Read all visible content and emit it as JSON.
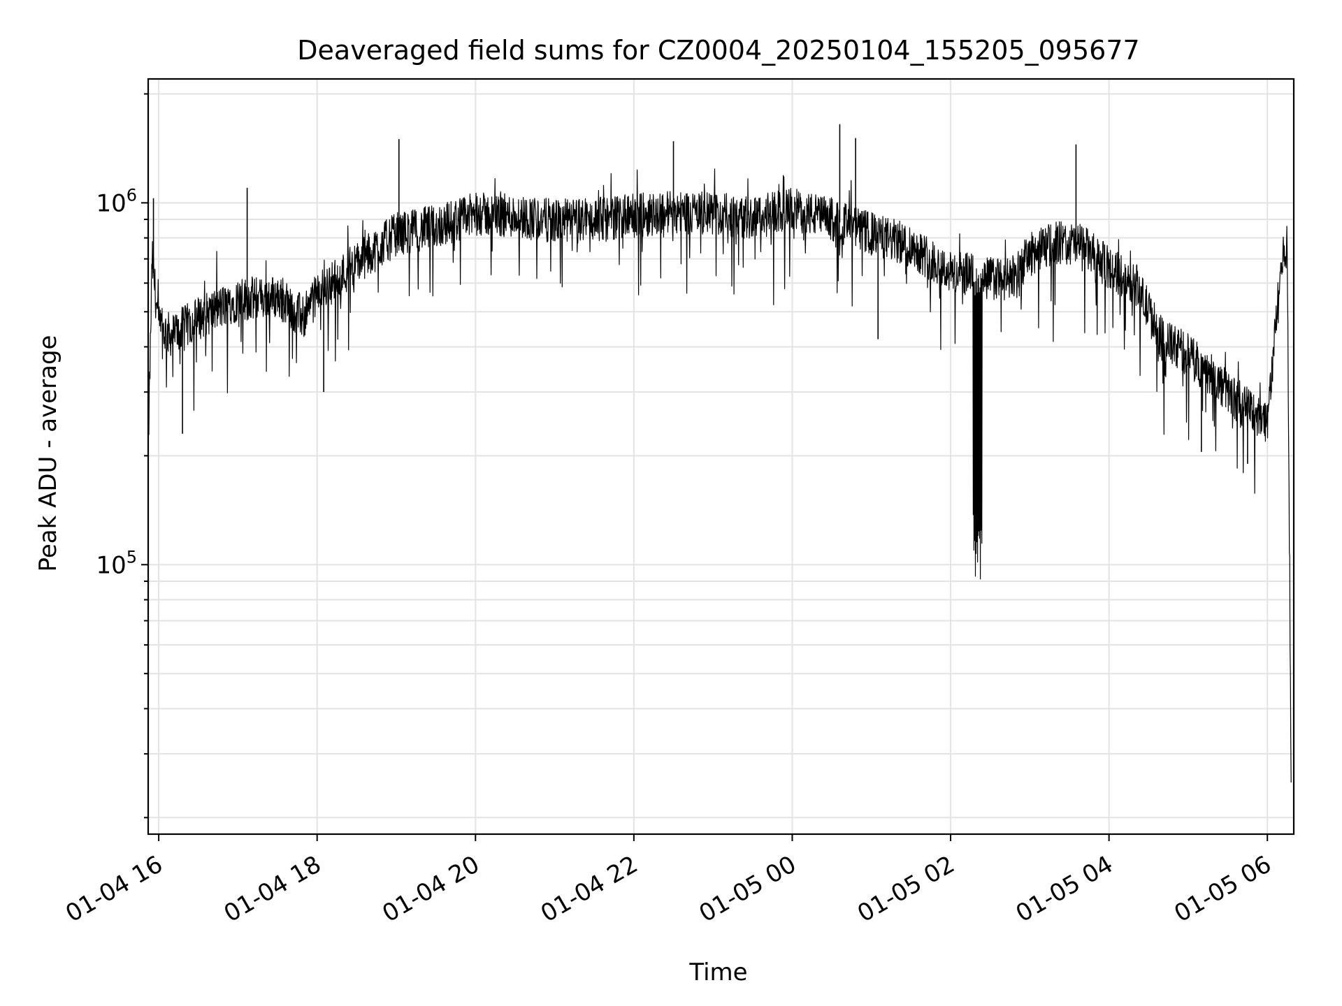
{
  "chart_data": {
    "type": "line",
    "title": "Deaveraged field sums for CZ0004_20250104_155205_095677",
    "xlabel": "Time",
    "ylabel": "Peak ADU - average",
    "yscale": "log",
    "grid": true,
    "xlim": [
      "2025-01-04 15:52",
      "2025-01-05 06:20"
    ],
    "ylim": [
      18000,
      2200000
    ],
    "xticks": [
      {
        "label": "01-04 16",
        "t": "2025-01-04 16:00"
      },
      {
        "label": "01-04 18",
        "t": "2025-01-04 18:00"
      },
      {
        "label": "01-04 20",
        "t": "2025-01-04 20:00"
      },
      {
        "label": "01-04 22",
        "t": "2025-01-04 22:00"
      },
      {
        "label": "01-05 00",
        "t": "2025-01-05 00:00"
      },
      {
        "label": "01-05 02",
        "t": "2025-01-05 02:00"
      },
      {
        "label": "01-05 04",
        "t": "2025-01-05 04:00"
      },
      {
        "label": "01-05 06",
        "t": "2025-01-05 06:00"
      }
    ],
    "yticks": [
      {
        "base": "10",
        "exp": "5",
        "value": 100000
      },
      {
        "base": "10",
        "exp": "6",
        "value": 1000000
      }
    ],
    "series": [
      {
        "color": "#000000",
        "x": [
          "2025-01-04 15:52",
          "2025-01-04 15:55",
          "2025-01-04 16:00",
          "2025-01-04 16:10",
          "2025-01-04 16:30",
          "2025-01-04 17:00",
          "2025-01-04 17:30",
          "2025-01-04 17:50",
          "2025-01-04 18:00",
          "2025-01-04 18:30",
          "2025-01-04 19:00",
          "2025-01-04 19:30",
          "2025-01-04 20:00",
          "2025-01-04 20:30",
          "2025-01-04 21:00",
          "2025-01-04 21:30",
          "2025-01-04 22:00",
          "2025-01-04 22:30",
          "2025-01-04 23:00",
          "2025-01-04 23:30",
          "2025-01-05 00:00",
          "2025-01-05 00:30",
          "2025-01-05 01:00",
          "2025-01-05 01:30",
          "2025-01-05 01:50",
          "2025-01-05 02:00",
          "2025-01-05 02:20",
          "2025-01-05 02:30",
          "2025-01-05 02:45",
          "2025-01-05 03:00",
          "2025-01-05 03:20",
          "2025-01-05 03:40",
          "2025-01-05 04:00",
          "2025-01-05 04:20",
          "2025-01-05 04:40",
          "2025-01-05 05:00",
          "2025-01-05 05:15",
          "2025-01-05 05:30",
          "2025-01-05 05:45",
          "2025-01-05 06:00",
          "2025-01-05 06:05",
          "2025-01-05 06:10",
          "2025-01-05 06:15",
          "2025-01-05 06:18"
        ],
        "y": [
          200000,
          700000,
          450000,
          430000,
          480000,
          540000,
          550000,
          480000,
          560000,
          680000,
          820000,
          860000,
          930000,
          920000,
          890000,
          900000,
          920000,
          950000,
          930000,
          910000,
          960000,
          900000,
          820000,
          760000,
          680000,
          640000,
          630000,
          620000,
          610000,
          720000,
          780000,
          760000,
          660000,
          600000,
          420000,
          380000,
          340000,
          300000,
          270000,
          250000,
          400000,
          650000,
          780000,
          25000
        ]
      }
    ],
    "spikes": [
      {
        "t": "2025-01-04 15:56",
        "y": 1030000
      },
      {
        "t": "2025-01-04 17:07",
        "y": 1100000
      },
      {
        "t": "2025-01-04 19:02",
        "y": 1500000
      },
      {
        "t": "2025-01-04 22:30",
        "y": 1480000
      },
      {
        "t": "2025-01-05 00:36",
        "y": 1650000
      },
      {
        "t": "2025-01-05 00:48",
        "y": 1510000
      },
      {
        "t": "2025-01-05 03:35",
        "y": 1450000
      },
      {
        "t": "2025-01-04 16:18",
        "y": 230000
      },
      {
        "t": "2025-01-04 18:05",
        "y": 300000
      },
      {
        "t": "2025-01-05 01:05",
        "y": 420000
      },
      {
        "t": "2025-01-05 05:10",
        "y": 205000
      },
      {
        "t": "2025-01-05 05:45",
        "y": 190000
      }
    ],
    "dips": [
      {
        "start": "2025-01-05 02:17",
        "end": "2025-01-05 02:24",
        "min": 88000
      }
    ]
  }
}
